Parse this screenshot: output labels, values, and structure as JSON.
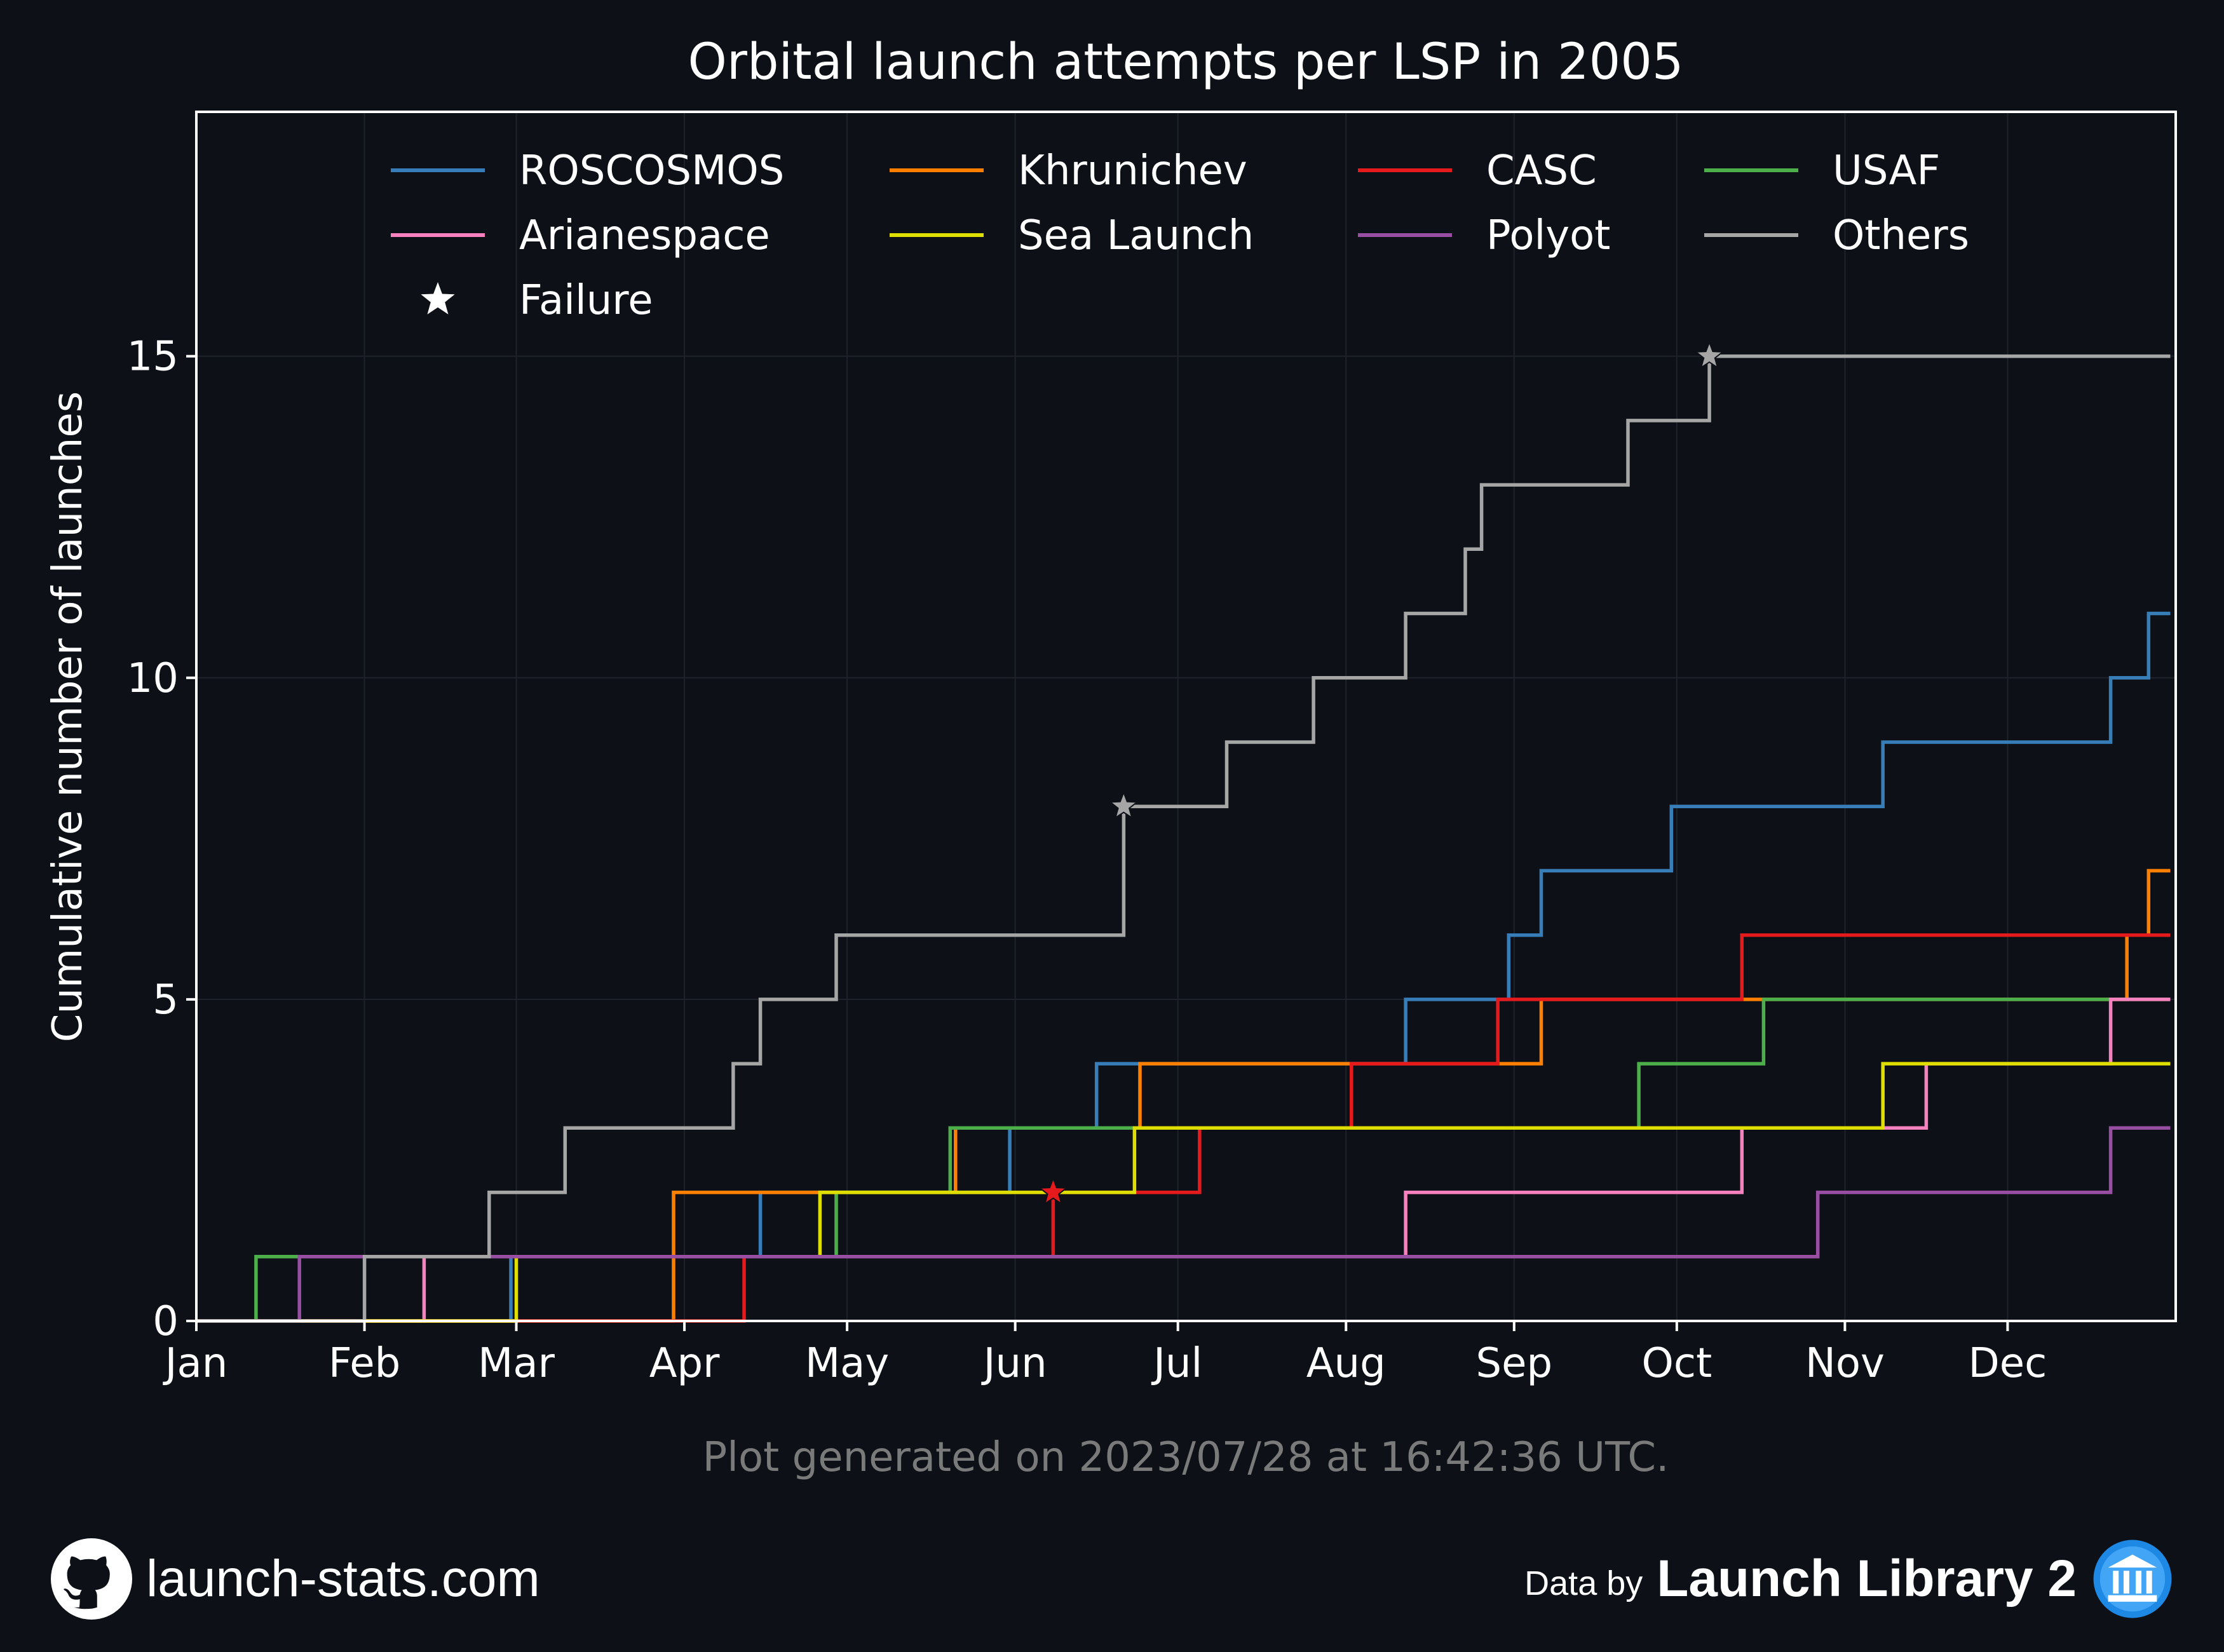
{
  "chart_data": {
    "type": "line",
    "step": "post",
    "title": "Orbital launch attempts per LSP in 2005",
    "xlabel": "",
    "ylabel": "Cumulative number of launches",
    "x_ticks": [
      "Jan",
      "Feb",
      "Mar",
      "Apr",
      "May",
      "Jun",
      "Jul",
      "Aug",
      "Sep",
      "Oct",
      "Nov",
      "Dec"
    ],
    "y_ticks": [
      0,
      5,
      10,
      15
    ],
    "xlim": [
      "2005-01-01",
      "2005-12-31"
    ],
    "ylim": [
      0,
      18.8
    ],
    "grid": true,
    "legend_position": "top",
    "series": [
      {
        "name": "ROSCOSMOS",
        "color": "#377eb8",
        "x": [
          "2005-01-01",
          "2005-02-28",
          "2005-04-15",
          "2005-05-31",
          "2005-06-16",
          "2005-08-12",
          "2005-08-31",
          "2005-09-06",
          "2005-09-30",
          "2005-11-08",
          "2005-12-20",
          "2005-12-27",
          "2005-12-31"
        ],
        "y": [
          0,
          1,
          2,
          3,
          4,
          5,
          6,
          7,
          8,
          9,
          10,
          11,
          11
        ]
      },
      {
        "name": "Khrunichev",
        "color": "#ff7f00",
        "x": [
          "2005-01-01",
          "2005-03-30",
          "2005-05-21",
          "2005-06-24",
          "2005-09-06",
          "2005-10-17",
          "2005-12-23",
          "2005-12-27",
          "2005-12-31"
        ],
        "y": [
          0,
          2,
          3,
          4,
          5,
          5,
          6,
          7,
          7
        ]
      },
      {
        "name": "CASC",
        "color": "#e41a1c",
        "x": [
          "2005-01-01",
          "2005-04-12",
          "2005-06-08",
          "2005-07-05",
          "2005-08-02",
          "2005-08-29",
          "2005-10-13",
          "2005-12-31"
        ],
        "y": [
          0,
          1,
          2,
          3,
          4,
          5,
          6,
          6
        ]
      },
      {
        "name": "USAF",
        "color": "#4daf4a",
        "x": [
          "2005-01-01",
          "2005-01-12",
          "2005-04-29",
          "2005-05-20",
          "2005-09-24",
          "2005-10-17",
          "2005-12-31"
        ],
        "y": [
          0,
          1,
          2,
          3,
          4,
          5,
          5
        ]
      },
      {
        "name": "Arianespace",
        "color": "#f781bf",
        "x": [
          "2005-01-01",
          "2005-02-12",
          "2005-08-12",
          "2005-10-13",
          "2005-11-16",
          "2005-12-20",
          "2005-12-31"
        ],
        "y": [
          0,
          1,
          2,
          3,
          4,
          5,
          5
        ]
      },
      {
        "name": "Sea Launch",
        "color": "#dede00",
        "x": [
          "2005-01-01",
          "2005-03-01",
          "2005-04-26",
          "2005-06-23",
          "2005-11-08",
          "2005-12-31"
        ],
        "y": [
          0,
          1,
          2,
          3,
          4,
          4
        ]
      },
      {
        "name": "Polyot",
        "color": "#984ea3",
        "x": [
          "2005-01-01",
          "2005-01-20",
          "2005-10-27",
          "2005-12-20",
          "2005-12-31"
        ],
        "y": [
          0,
          1,
          2,
          3,
          3
        ]
      },
      {
        "name": "Others",
        "color": "#a6a6a6",
        "x": [
          "2005-01-01",
          "2005-02-01",
          "2005-02-24",
          "2005-03-10",
          "2005-04-10",
          "2005-04-15",
          "2005-04-29",
          "2005-06-21",
          "2005-07-10",
          "2005-07-26",
          "2005-08-12",
          "2005-08-23",
          "2005-08-26",
          "2005-09-22",
          "2005-10-07",
          "2005-12-31"
        ],
        "y": [
          0,
          1,
          2,
          3,
          4,
          5,
          6,
          8,
          9,
          10,
          11,
          12,
          13,
          14,
          15,
          15
        ]
      }
    ],
    "failures": [
      {
        "series": "Others",
        "x": "2005-06-21",
        "y": 8
      },
      {
        "series": "CASC",
        "x": "2005-06-08",
        "y": 2
      },
      {
        "series": "Others",
        "x": "2005-10-07",
        "y": 15
      }
    ],
    "legend_failure_label": "Failure"
  },
  "footnote": "Plot generated on 2023/07/28 at 16:42:36 UTC.",
  "footer": {
    "site": "launch-stats.com",
    "data_by": "Data by",
    "source": "Launch Library 2"
  },
  "colors": {
    "background": "#0d1117",
    "text": "#ffffff",
    "footnote": "#7a7a7a",
    "grid": "#1e232b"
  }
}
